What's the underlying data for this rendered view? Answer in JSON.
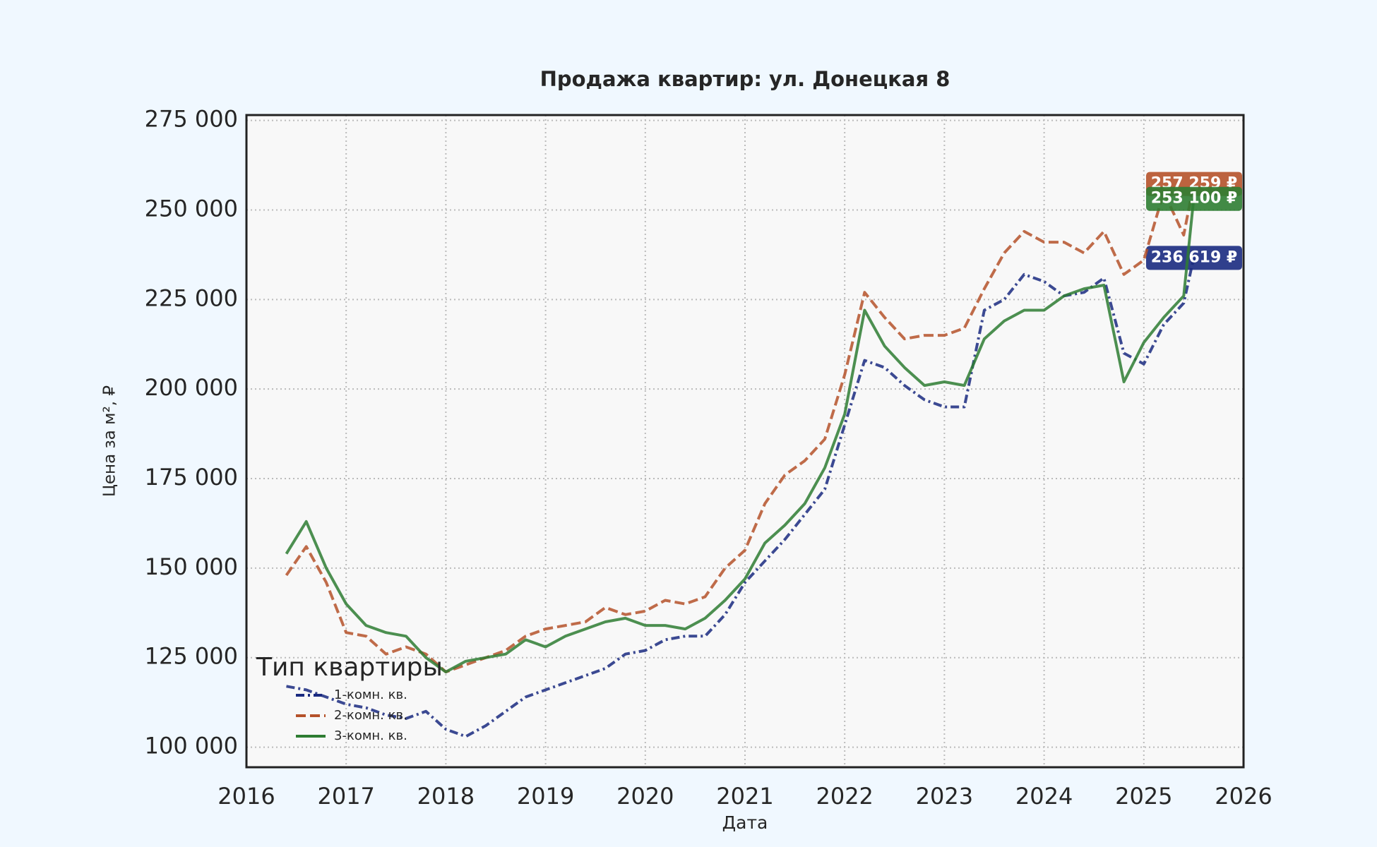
{
  "chart_data": {
    "type": "line",
    "title": "Продажа квартир: ул. Донецкая 8",
    "xlabel": "Дата",
    "ylabel": "Цена за м², ₽",
    "legend_title": "Тип квартиры",
    "legend": "lower left",
    "grid": true,
    "xlim": [
      2016,
      2026
    ],
    "xticks": [
      2016,
      2017,
      2018,
      2019,
      2020,
      2021,
      2022,
      2023,
      2024,
      2025,
      2026
    ],
    "ylim": [
      94400,
      276500
    ],
    "yticks": [
      {
        "value": 100000,
        "label": "100 000"
      },
      {
        "value": 125000,
        "label": "125 000"
      },
      {
        "value": 150000,
        "label": "150 000"
      },
      {
        "value": 175000,
        "label": "175 000"
      },
      {
        "value": 200000,
        "label": "200 000"
      },
      {
        "value": 225000,
        "label": "225 000"
      },
      {
        "value": 250000,
        "label": "250 000"
      },
      {
        "value": 275000,
        "label": "275 000"
      }
    ],
    "x": [
      2016.4,
      2016.6,
      2016.8,
      2017.0,
      2017.2,
      2017.4,
      2017.6,
      2017.8,
      2018.0,
      2018.2,
      2018.4,
      2018.6,
      2018.8,
      2019.0,
      2019.2,
      2019.4,
      2019.6,
      2019.8,
      2020.0,
      2020.2,
      2020.4,
      2020.6,
      2020.8,
      2021.0,
      2021.2,
      2021.4,
      2021.6,
      2021.8,
      2022.0,
      2022.2,
      2022.4,
      2022.6,
      2022.8,
      2023.0,
      2023.2,
      2023.4,
      2023.6,
      2023.8,
      2024.0,
      2024.2,
      2024.4,
      2024.6,
      2024.8,
      2025.0,
      2025.2,
      2025.4,
      2025.5
    ],
    "series": [
      {
        "name": "1-комн. кв.",
        "color": "#1a2a80",
        "linestyle": "dashdot",
        "end_label": "236 619 ₽",
        "values": [
          117000,
          116000,
          114000,
          112000,
          111000,
          109000,
          108000,
          110000,
          105000,
          103000,
          106000,
          110000,
          114000,
          116000,
          118000,
          120000,
          122000,
          126000,
          127000,
          130000,
          131000,
          131000,
          137000,
          146000,
          152000,
          158000,
          165000,
          172000,
          190000,
          208000,
          206000,
          201000,
          197000,
          195000,
          195000,
          222000,
          225000,
          232000,
          230000,
          226000,
          227000,
          231000,
          210000,
          207000,
          218000,
          224000,
          236619
        ]
      },
      {
        "name": "2-комн. кв.",
        "color": "#b5522a",
        "linestyle": "dashed",
        "end_label": "257 259 ₽",
        "values": [
          148000,
          156000,
          146000,
          132000,
          131000,
          126000,
          128000,
          126000,
          121000,
          123000,
          125000,
          127000,
          131000,
          133000,
          134000,
          135000,
          139000,
          137000,
          138000,
          141000,
          140000,
          142000,
          150000,
          155000,
          168000,
          176000,
          180000,
          186000,
          204000,
          227000,
          220000,
          214000,
          215000,
          215000,
          217000,
          228000,
          238000,
          244000,
          241000,
          241000,
          238000,
          244000,
          232000,
          236000,
          255000,
          243000,
          257259
        ]
      },
      {
        "name": "3-комн. кв.",
        "color": "#2e7d32",
        "linestyle": "solid",
        "end_label": "253 100 ₽",
        "values": [
          154000,
          163000,
          150000,
          140000,
          134000,
          132000,
          131000,
          125000,
          121000,
          124000,
          125000,
          126000,
          130000,
          128000,
          131000,
          133000,
          135000,
          136000,
          134000,
          134000,
          133000,
          136000,
          141000,
          147000,
          157000,
          162000,
          168000,
          178000,
          193000,
          222000,
          212000,
          206000,
          201000,
          202000,
          201000,
          214000,
          219000,
          222000,
          222000,
          226000,
          228000,
          229000,
          202000,
          213000,
          220000,
          226000,
          253100
        ]
      }
    ]
  }
}
